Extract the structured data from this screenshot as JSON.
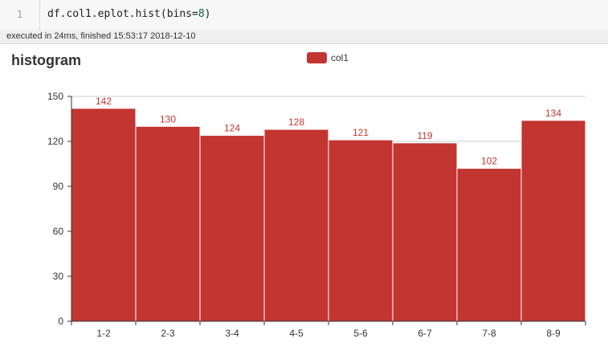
{
  "code_cell": {
    "line_number": "1",
    "code_prefix": "df.col1.eplot.hist(bins=",
    "code_number": "8",
    "code_suffix": ")"
  },
  "execution_info": "executed in 24ms, finished 15:53:17 2018-12-10",
  "colors": {
    "bar": "#c23531",
    "bar_stroke": "#ffffff",
    "label": "#c23531",
    "axis": "#333333",
    "grid": "#cccccc"
  },
  "chart_data": {
    "type": "bar",
    "title": "histogram",
    "categories": [
      "1-2",
      "2-3",
      "3-4",
      "4-5",
      "5-6",
      "6-7",
      "7-8",
      "8-9"
    ],
    "series": [
      {
        "name": "col1",
        "values": [
          142,
          130,
          124,
          128,
          121,
          119,
          102,
          134
        ]
      }
    ],
    "y_ticks": [
      0,
      30,
      60,
      90,
      120,
      150
    ],
    "ylim": [
      0,
      150
    ],
    "grid": true,
    "legend_position": "top-center",
    "data_labels": true
  }
}
